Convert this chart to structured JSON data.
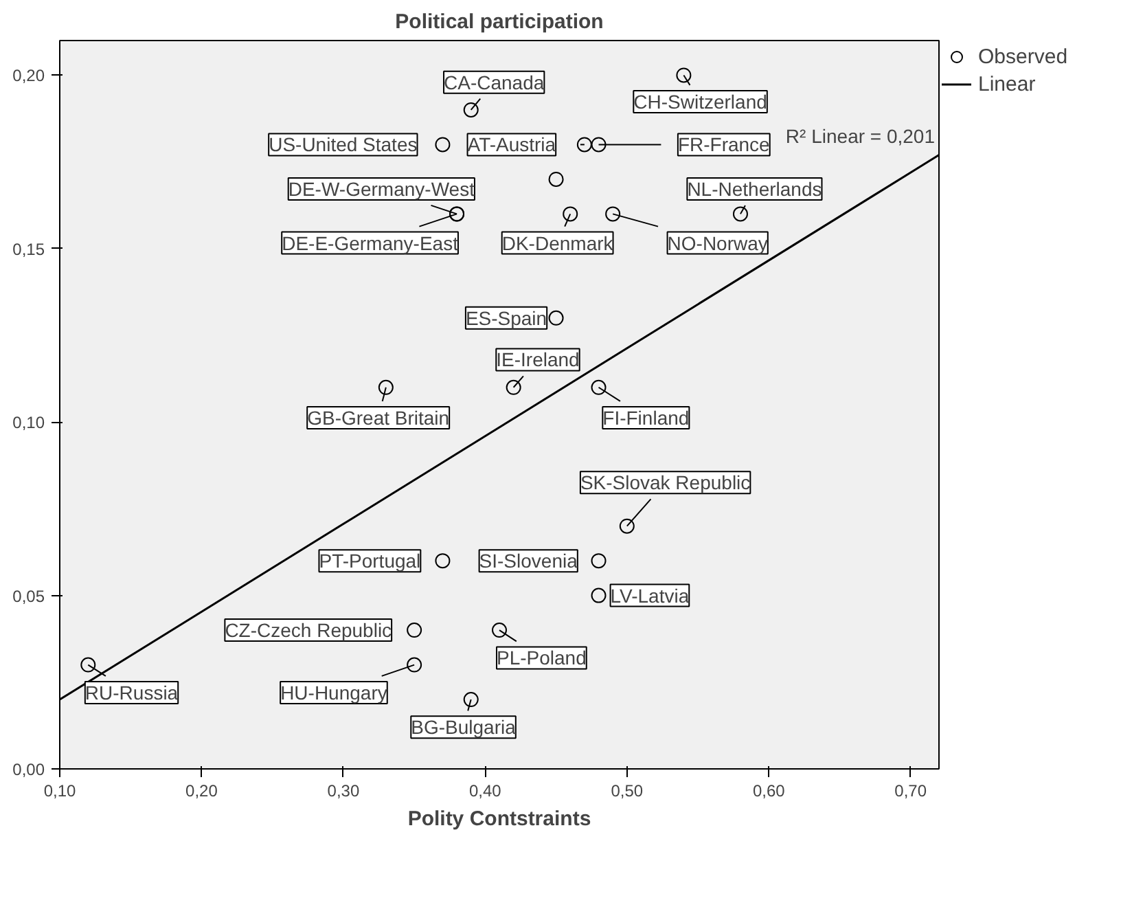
{
  "chart_data": {
    "type": "scatter",
    "title": "Political participation",
    "xlabel": "Polity Contstraints",
    "xlim": [
      0.1,
      0.72
    ],
    "ylim": [
      0,
      0.21
    ],
    "xticks": [
      {
        "value": 0.1,
        "label": "0,10"
      },
      {
        "value": 0.2,
        "label": "0,20"
      },
      {
        "value": 0.3,
        "label": "0,30"
      },
      {
        "value": 0.4,
        "label": "0,40"
      },
      {
        "value": 0.5,
        "label": "0,50"
      },
      {
        "value": 0.6,
        "label": "0,60"
      },
      {
        "value": 0.7,
        "label": "0,70"
      }
    ],
    "yticks": [
      {
        "value": 0,
        "label": "0,00"
      },
      {
        "value": 0.05,
        "label": "0,05"
      },
      {
        "value": 0.1,
        "label": "0,10"
      },
      {
        "value": 0.15,
        "label": "0,15"
      },
      {
        "value": 0.2,
        "label": "0,20"
      }
    ],
    "grid": false,
    "legend": "top right",
    "series": [
      {
        "name": "Observed",
        "color": "#000000",
        "marker": "circle",
        "x": [
          0.12,
          0.35,
          0.35,
          0.37,
          0.33,
          0.39,
          0.41,
          0.48,
          0.48,
          0.5,
          0.48,
          0.42,
          0.45,
          0.46,
          0.49,
          0.58,
          0.38,
          0.38,
          0.47,
          0.48,
          0.37,
          0.39,
          0.54,
          0.45
        ],
        "values": [
          0.03,
          0.03,
          0.04,
          0.06,
          0.11,
          0.02,
          0.04,
          0.06,
          0.05,
          0.07,
          0.11,
          0.11,
          0.13,
          0.16,
          0.16,
          0.16,
          0.16,
          0.16,
          0.18,
          0.18,
          0.18,
          0.19,
          0.2,
          0.17
        ],
        "value_labels": [
          "RU-Russia",
          "HU-Hungary",
          "CZ-Czech Republic",
          "PT-Portugal",
          "GB-Great Britain",
          "BG-Bulgaria",
          "PL-Poland",
          "SI-Slovenia",
          "LV-Latvia",
          "SK-Slovak Republic",
          "FI-Finland",
          "IE-Ireland",
          "ES-Spain",
          "DK-Denmark",
          "NO-Norway",
          "NL-Netherlands",
          "DE-W-Germany-West",
          "DE-E-Germany-East",
          "AT-Austria",
          "FR-France",
          "US-United States",
          "CA-Canada",
          "CH-Switzerland",
          null
        ]
      },
      {
        "name": "Linear",
        "color": "#000000",
        "type": "line",
        "line_style": "solid",
        "x": [
          0.1,
          0.72
        ],
        "values": [
          0.02,
          0.177
        ]
      }
    ],
    "annotations": [
      {
        "text": "R² Linear = 0,201",
        "x": 0.72,
        "y": 0.177
      }
    ]
  }
}
